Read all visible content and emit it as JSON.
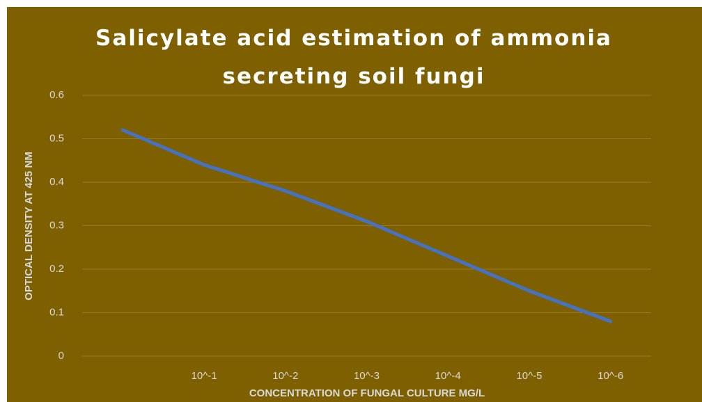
{
  "chart_data": {
    "type": "line",
    "title": "Salicylate acid estimation of ammonia secreting soil fungi",
    "x_label": "CONCENTRATION OF FUNGAL CULTURE MG/L",
    "y_label": "OPTICAL DENSITY AT 425 NM",
    "categories": [
      null,
      "10^-1",
      "10^-2",
      "10^-3",
      "10^-4",
      "10^-5",
      "10^-6"
    ],
    "values": [
      0.52,
      0.44,
      0.38,
      0.31,
      0.23,
      0.15,
      0.08
    ],
    "color": "#4472c4",
    "ylim": [
      0,
      0.6
    ],
    "yticks": [
      0,
      0.1,
      0.2,
      0.3,
      0.4,
      0.5,
      0.6
    ],
    "grid": true
  }
}
